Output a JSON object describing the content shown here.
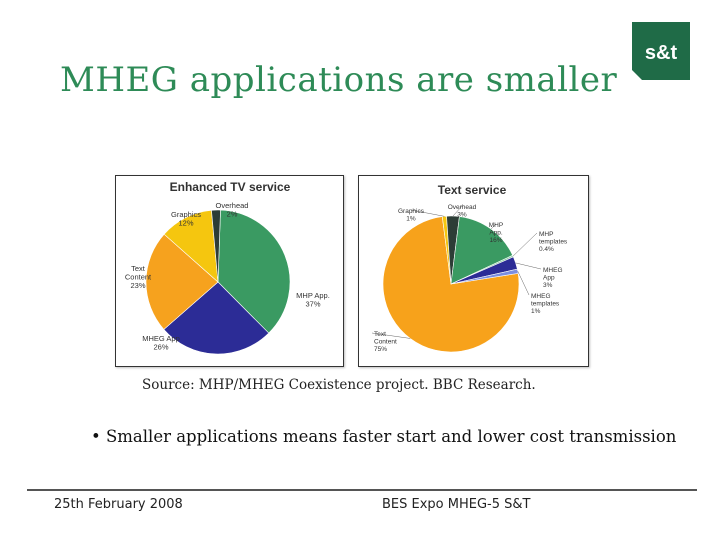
{
  "slide": {
    "title": "MHEG applications are smaller",
    "source": "Source:  MHP/MHEG Coexistence project.  BBC Research.",
    "bullet": "• Smaller applications means faster start and lower cost transmission",
    "footer_date": "25th February 2008",
    "footer_event": "BES Expo MHEG-5  S&T",
    "logo_text": "s&t",
    "brand_color": "#2e8b57"
  },
  "chart_data": [
    {
      "type": "pie",
      "title": "Enhanced TV service",
      "series": [
        {
          "label": "MHP App.",
          "value": 37,
          "display": "37%",
          "color": "#3a9a62"
        },
        {
          "label": "MHEG App",
          "value": 26,
          "display": "26%",
          "color": "#2c2c96"
        },
        {
          "label": "Text Content",
          "value": 23,
          "display": "23%",
          "color": "#f6a21e"
        },
        {
          "label": "Graphics",
          "value": 12,
          "display": "12%",
          "color": "#f5c60f"
        },
        {
          "label": "Overhead",
          "value": 2,
          "display": "2%",
          "color": "#2d3d36"
        }
      ]
    },
    {
      "type": "pie",
      "title": "Text service",
      "series": [
        {
          "label": "Text Content",
          "value": 75,
          "display": "75%",
          "color": "#f7a21b"
        },
        {
          "label": "Graphics",
          "value": 1,
          "display": "1%",
          "color": "#f5c60f"
        },
        {
          "label": "Overhead",
          "value": 3,
          "display": "3%",
          "color": "#2d3d36"
        },
        {
          "label": "MHP App.",
          "value": 16,
          "display": "16%",
          "color": "#3a9a62"
        },
        {
          "label": "MHP templates",
          "value": 0.4,
          "display": "0.4%",
          "color": "#88c8a0"
        },
        {
          "label": "MHEG App",
          "value": 3,
          "display": "3%",
          "color": "#2c2c96"
        },
        {
          "label": "MHEG templates",
          "value": 1,
          "display": "1%",
          "color": "#7b8de0"
        }
      ]
    }
  ]
}
